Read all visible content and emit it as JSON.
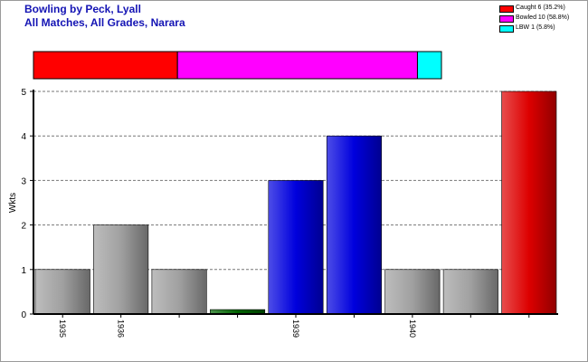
{
  "title_line1": "Bowling by Peck, Lyall",
  "title_line2": "All Matches, All Grades, Narara",
  "legend": [
    {
      "label": "Caught 6 (35.2%)",
      "color": "#ff0000"
    },
    {
      "label": "Bowled 10 (58.8%)",
      "color": "#ff00ff"
    },
    {
      "label": "LBW 1 (5.8%)",
      "color": "#00ffff"
    }
  ],
  "chart_data": {
    "type": "bar",
    "title": "Bowling by Peck, Lyall",
    "subtitle": "All Matches, All Grades, Narara",
    "ylabel": "Wkts",
    "xlabel": "",
    "ylim": [
      0,
      5
    ],
    "yticks": [
      0,
      1,
      2,
      3,
      4,
      5
    ],
    "grid": true,
    "categories": [
      "1935",
      "1936",
      "",
      "",
      "1939",
      "",
      "1940",
      "",
      ""
    ],
    "values": [
      1,
      2,
      1,
      0.1,
      3,
      4,
      1,
      1,
      5
    ],
    "bar_colors": [
      "#a0a0a0",
      "#a0a0a0",
      "#a0a0a0",
      "#006400",
      "#0000dd",
      "#0000dd",
      "#a0a0a0",
      "#a0a0a0",
      "#dd0000"
    ],
    "dismissal_breakdown": [
      {
        "type": "Caught",
        "count": 6,
        "percent": 35.2,
        "color": "#ff0000"
      },
      {
        "type": "Bowled",
        "count": 10,
        "percent": 58.8,
        "color": "#ff00ff"
      },
      {
        "type": "LBW",
        "count": 1,
        "percent": 5.8,
        "color": "#00ffff"
      }
    ]
  }
}
